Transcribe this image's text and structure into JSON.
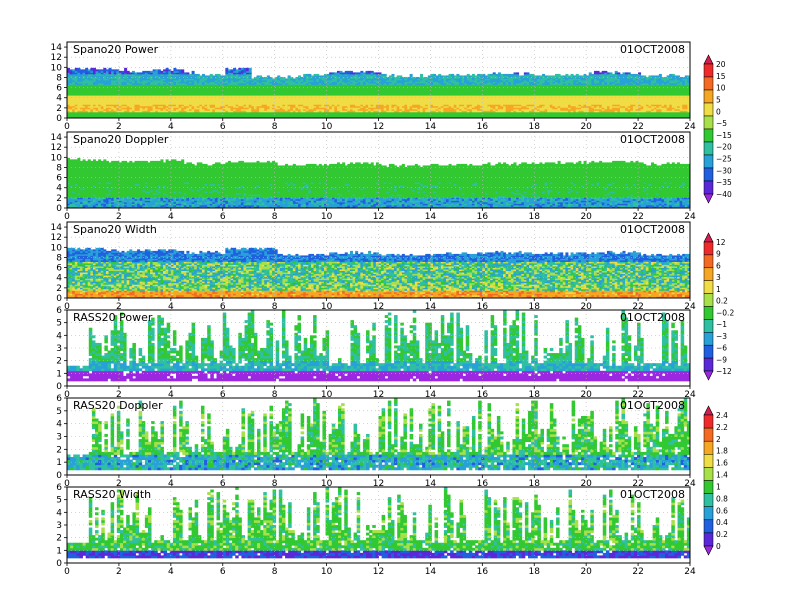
{
  "chart_data": [
    {
      "type": "heatmap",
      "title": "Spano20 Power",
      "date": "01OCT2008",
      "xlim": [
        0,
        24
      ],
      "xticks": [
        0,
        2,
        4,
        6,
        8,
        10,
        12,
        14,
        16,
        18,
        20,
        22,
        24
      ],
      "ylim": [
        0,
        15
      ],
      "yticks": [
        0,
        2,
        4,
        6,
        8,
        10,
        12,
        14
      ],
      "colorbar": "scale_a",
      "top_height_profile": [
        [
          0,
          9.6
        ],
        [
          1.4,
          9.4
        ],
        [
          2.2,
          9.0
        ],
        [
          3.0,
          9.4
        ],
        [
          4.4,
          8.8
        ],
        [
          5.0,
          8.4
        ],
        [
          6.0,
          9.6
        ],
        [
          7.0,
          8.0
        ],
        [
          9.0,
          8.4
        ],
        [
          10.0,
          9.0
        ],
        [
          12.0,
          8.2
        ],
        [
          14.0,
          8.4
        ],
        [
          16.0,
          8.6
        ],
        [
          18.0,
          8.4
        ],
        [
          20.0,
          8.8
        ],
        [
          22.0,
          8.2
        ],
        [
          24.0,
          8.6
        ]
      ],
      "dominant_bands": [
        {
          "from": 0.0,
          "to": 1.0,
          "value": -10
        },
        {
          "from": 1.0,
          "to": 2.5,
          "value": 5
        },
        {
          "from": 2.5,
          "to": 4.5,
          "value": 2
        },
        {
          "from": 4.5,
          "to": 6.5,
          "value": -10
        },
        {
          "from": 6.5,
          "to": 8.5,
          "value": -20
        },
        {
          "from": 8.5,
          "to": 10.0,
          "value": -28
        }
      ]
    },
    {
      "type": "heatmap",
      "title": "Spano20 Doppler",
      "date": "01OCT2008",
      "xlim": [
        0,
        24
      ],
      "xticks": [
        0,
        2,
        4,
        6,
        8,
        10,
        12,
        14,
        16,
        18,
        20,
        22,
        24
      ],
      "ylim": [
        0,
        15
      ],
      "yticks": [
        0,
        2,
        4,
        6,
        8,
        10,
        12,
        14
      ],
      "colorbar": "scale_a",
      "top_height_profile": [
        [
          0,
          9.4
        ],
        [
          1.4,
          9.0
        ],
        [
          3.0,
          9.2
        ],
        [
          4.4,
          8.6
        ],
        [
          6.0,
          9.0
        ],
        [
          8.0,
          8.4
        ],
        [
          10.0,
          8.6
        ],
        [
          12.0,
          8.2
        ],
        [
          14.0,
          8.4
        ],
        [
          16.0,
          8.6
        ],
        [
          18.0,
          8.8
        ],
        [
          20.0,
          9.0
        ],
        [
          22.0,
          8.6
        ],
        [
          24.0,
          8.8
        ]
      ],
      "dominant_bands": [
        {
          "from": 0.0,
          "to": 2.0,
          "value": -22
        },
        {
          "from": 2.0,
          "to": 5.0,
          "value": -12
        },
        {
          "from": 5.0,
          "to": 9.5,
          "value": -8
        }
      ]
    },
    {
      "type": "heatmap",
      "title": "Spano20 Width",
      "date": "01OCT2008",
      "xlim": [
        0,
        24
      ],
      "xticks": [
        0,
        2,
        4,
        6,
        8,
        10,
        12,
        14,
        16,
        18,
        20,
        22,
        24
      ],
      "ylim": [
        0,
        15
      ],
      "yticks": [
        0,
        2,
        4,
        6,
        8,
        10,
        12,
        14
      ],
      "colorbar": "scale_b",
      "top_height_profile": [
        [
          0,
          9.6
        ],
        [
          1.4,
          9.2
        ],
        [
          3.0,
          9.4
        ],
        [
          4.4,
          8.8
        ],
        [
          6.0,
          9.6
        ],
        [
          8.0,
          8.4
        ],
        [
          10.0,
          8.8
        ],
        [
          12.0,
          8.4
        ],
        [
          14.0,
          8.6
        ],
        [
          16.0,
          8.8
        ],
        [
          18.0,
          8.6
        ],
        [
          20.0,
          8.8
        ],
        [
          22.0,
          8.4
        ],
        [
          24.0,
          8.6
        ]
      ],
      "dominant_bands": [
        {
          "from": 0.0,
          "to": 1.5,
          "value": 5
        },
        {
          "from": 1.5,
          "to": 3.0,
          "value": 0.2
        },
        {
          "from": 3.0,
          "to": 7.0,
          "value": -0.2
        },
        {
          "from": 7.0,
          "to": 9.5,
          "value": -3
        }
      ]
    },
    {
      "type": "heatmap",
      "title": "RASS20 Power",
      "date": "01OCT2008",
      "xlim": [
        0,
        24
      ],
      "xticks": [
        0,
        2,
        4,
        6,
        8,
        10,
        12,
        14,
        16,
        18,
        20,
        22,
        24
      ],
      "ylim": [
        0,
        6
      ],
      "yticks": [
        0,
        1,
        2,
        3,
        4,
        5,
        6
      ],
      "colorbar": "scale_b",
      "dominant_bands": [
        {
          "from": 0.3,
          "to": 1.2,
          "value": -12
        },
        {
          "from": 1.2,
          "to": 2.0,
          "value": -1
        },
        {
          "from": 2.0,
          "to": 6.0,
          "value": -0.2
        }
      ]
    },
    {
      "type": "heatmap",
      "title": "RASS20 Doppler",
      "date": "01OCT2008",
      "xlim": [
        0,
        24
      ],
      "xticks": [
        0,
        2,
        4,
        6,
        8,
        10,
        12,
        14,
        16,
        18,
        20,
        22,
        24
      ],
      "ylim": [
        0,
        6
      ],
      "yticks": [
        0,
        1,
        2,
        3,
        4,
        5,
        6
      ],
      "colorbar": "scale_c",
      "dominant_bands": [
        {
          "from": 0.3,
          "to": 1.6,
          "value": 0.8
        },
        {
          "from": 1.6,
          "to": 6.0,
          "value": 1.2
        }
      ]
    },
    {
      "type": "heatmap",
      "title": "RASS20 Width",
      "date": "01OCT2008",
      "xlim": [
        0,
        24
      ],
      "xticks": [
        0,
        2,
        4,
        6,
        8,
        10,
        12,
        14,
        16,
        18,
        20,
        22,
        24
      ],
      "ylim": [
        0,
        6
      ],
      "yticks": [
        0,
        1,
        2,
        3,
        4,
        5,
        6
      ],
      "colorbar": "scale_c",
      "dominant_bands": [
        {
          "from": 0.3,
          "to": 1.0,
          "value": 0.4
        },
        {
          "from": 1.0,
          "to": 6.0,
          "value": 1.2
        }
      ]
    }
  ],
  "colorbars": {
    "scale_a": {
      "labels": [
        "20",
        "15",
        "10",
        "5",
        "0",
        "−5",
        "−15",
        "−20",
        "−25",
        "−30",
        "−35",
        "−40"
      ],
      "colors": [
        "#d21e50",
        "#ee2a2a",
        "#f46a22",
        "#f5a623",
        "#f0dd45",
        "#a8e04a",
        "#32c832",
        "#2ec0a0",
        "#28a0d8",
        "#2060e0",
        "#5a28d8",
        "#9b28e0"
      ]
    },
    "scale_b": {
      "labels": [
        "12",
        "9",
        "6",
        "3",
        "1",
        "0.2",
        "−0.2",
        "−1",
        "−3",
        "−6",
        "−9",
        "−12"
      ],
      "colors": [
        "#d21e50",
        "#ee2a2a",
        "#f46a22",
        "#f5a623",
        "#f0dd45",
        "#a8e04a",
        "#32c832",
        "#2ec0a0",
        "#28a0d8",
        "#2060e0",
        "#5a28d8",
        "#9b28e0"
      ]
    },
    "scale_c": {
      "labels": [
        "2.4",
        "2.2",
        "2",
        "1.8",
        "1.6",
        "1.4",
        "1",
        "0.8",
        "0.6",
        "0.4",
        "0.2",
        "0"
      ],
      "colors": [
        "#d21e50",
        "#ee2a2a",
        "#f46a22",
        "#f5a623",
        "#f0dd45",
        "#a8e04a",
        "#32c832",
        "#2ec0a0",
        "#28a0d8",
        "#2060e0",
        "#5a28d8",
        "#9b28e0"
      ]
    }
  }
}
